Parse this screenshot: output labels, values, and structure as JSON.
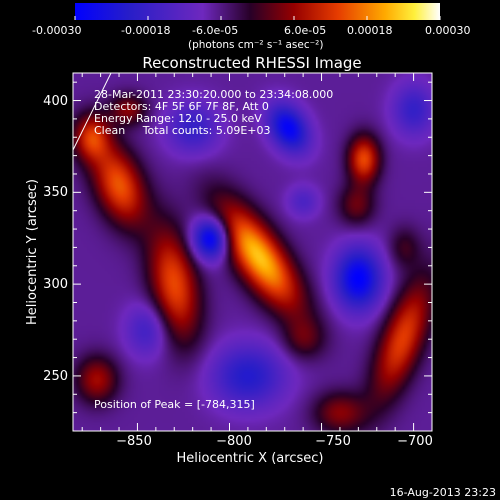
{
  "colorbar": {
    "ticks": [
      "-0.00030",
      "-0.00018",
      "-6.0e-05",
      "6.0e-05",
      "0.00018",
      "0.00030"
    ],
    "unit_label": "(photons cm⁻² s⁻¹ asec⁻²)",
    "range": [
      -0.0003,
      0.0003
    ]
  },
  "chart_data": {
    "type": "heatmap",
    "title": "Reconstructed RHESSI Image",
    "xlabel": "Heliocentric X (arcsec)",
    "ylabel": "Heliocentric Y (arcsec)",
    "xlim": [
      -885,
      -690
    ],
    "ylim": [
      220,
      415
    ],
    "xticks": [
      -850,
      -800,
      -750,
      -700
    ],
    "yticks": [
      250,
      300,
      350,
      400
    ],
    "xtick_labels": [
      "−850",
      "−800",
      "−750",
      "−700"
    ],
    "ytick_labels": [
      "250",
      "300",
      "350",
      "400"
    ],
    "info_lines": [
      "28-Mar-2011 23:30:20.000 to 23:34:08.000",
      "Detectors: 4F 5F 6F 7F 8F, Att 0",
      "Energy Range: 12.0 - 25.0 keV",
      "Clean     Total counts: 5.09E+03"
    ],
    "peak_label": "Position of Peak = [-784,315]",
    "peak": [
      -784,
      315
    ],
    "sources": [
      {
        "x": -784,
        "y": 315,
        "amp": 0.0003,
        "sx": 9,
        "sy": 24,
        "rot": 35
      },
      {
        "x": -860,
        "y": 354,
        "amp": 0.00022,
        "sx": 9,
        "sy": 16,
        "rot": 20
      },
      {
        "x": -830,
        "y": 300,
        "amp": 0.00021,
        "sx": 9,
        "sy": 22,
        "rot": 10
      },
      {
        "x": -727,
        "y": 368,
        "amp": 0.00021,
        "sx": 6,
        "sy": 9,
        "rot": 0
      },
      {
        "x": -731,
        "y": 343,
        "amp": 0.0001,
        "sx": 7,
        "sy": 8,
        "rot": 0
      },
      {
        "x": -706,
        "y": 270,
        "amp": 0.0002,
        "sx": 8,
        "sy": 24,
        "rot": -20
      },
      {
        "x": -875,
        "y": 380,
        "amp": 0.00018,
        "sx": 7,
        "sy": 9,
        "rot": 0
      },
      {
        "x": -855,
        "y": 395,
        "amp": 0.00012,
        "sx": 7,
        "sy": 6,
        "rot": 0
      },
      {
        "x": -872,
        "y": 248,
        "amp": 0.00014,
        "sx": 8,
        "sy": 9,
        "rot": 0
      },
      {
        "x": -740,
        "y": 230,
        "amp": 0.00012,
        "sx": 10,
        "sy": 8,
        "rot": 0
      },
      {
        "x": -760,
        "y": 270,
        "amp": 8e-05,
        "sx": 8,
        "sy": 8,
        "rot": 0
      },
      {
        "x": -705,
        "y": 320,
        "amp": 7e-05,
        "sx": 6,
        "sy": 8,
        "rot": 0
      },
      {
        "x": -810,
        "y": 325,
        "amp": -0.00025,
        "sx": 7,
        "sy": 8,
        "rot": 0
      },
      {
        "x": -768,
        "y": 385,
        "amp": -0.00022,
        "sx": 7,
        "sy": 10,
        "rot": 30
      },
      {
        "x": -730,
        "y": 303,
        "amp": -0.00023,
        "sx": 9,
        "sy": 12,
        "rot": 0
      },
      {
        "x": -820,
        "y": 385,
        "amp": -0.00012,
        "sx": 10,
        "sy": 10,
        "rot": 0
      },
      {
        "x": -790,
        "y": 250,
        "amp": -0.00015,
        "sx": 14,
        "sy": 12,
        "rot": 0
      },
      {
        "x": -700,
        "y": 395,
        "amp": -0.00012,
        "sx": 8,
        "sy": 10,
        "rot": 0
      },
      {
        "x": -845,
        "y": 275,
        "amp": -0.0001,
        "sx": 8,
        "sy": 10,
        "rot": 0
      },
      {
        "x": -760,
        "y": 345,
        "amp": -8e-05,
        "sx": 6,
        "sy": 6,
        "rot": 0
      }
    ],
    "background_level": -7e-05
  },
  "footer": {
    "timestamp": "16-Aug-2013 23:23"
  }
}
